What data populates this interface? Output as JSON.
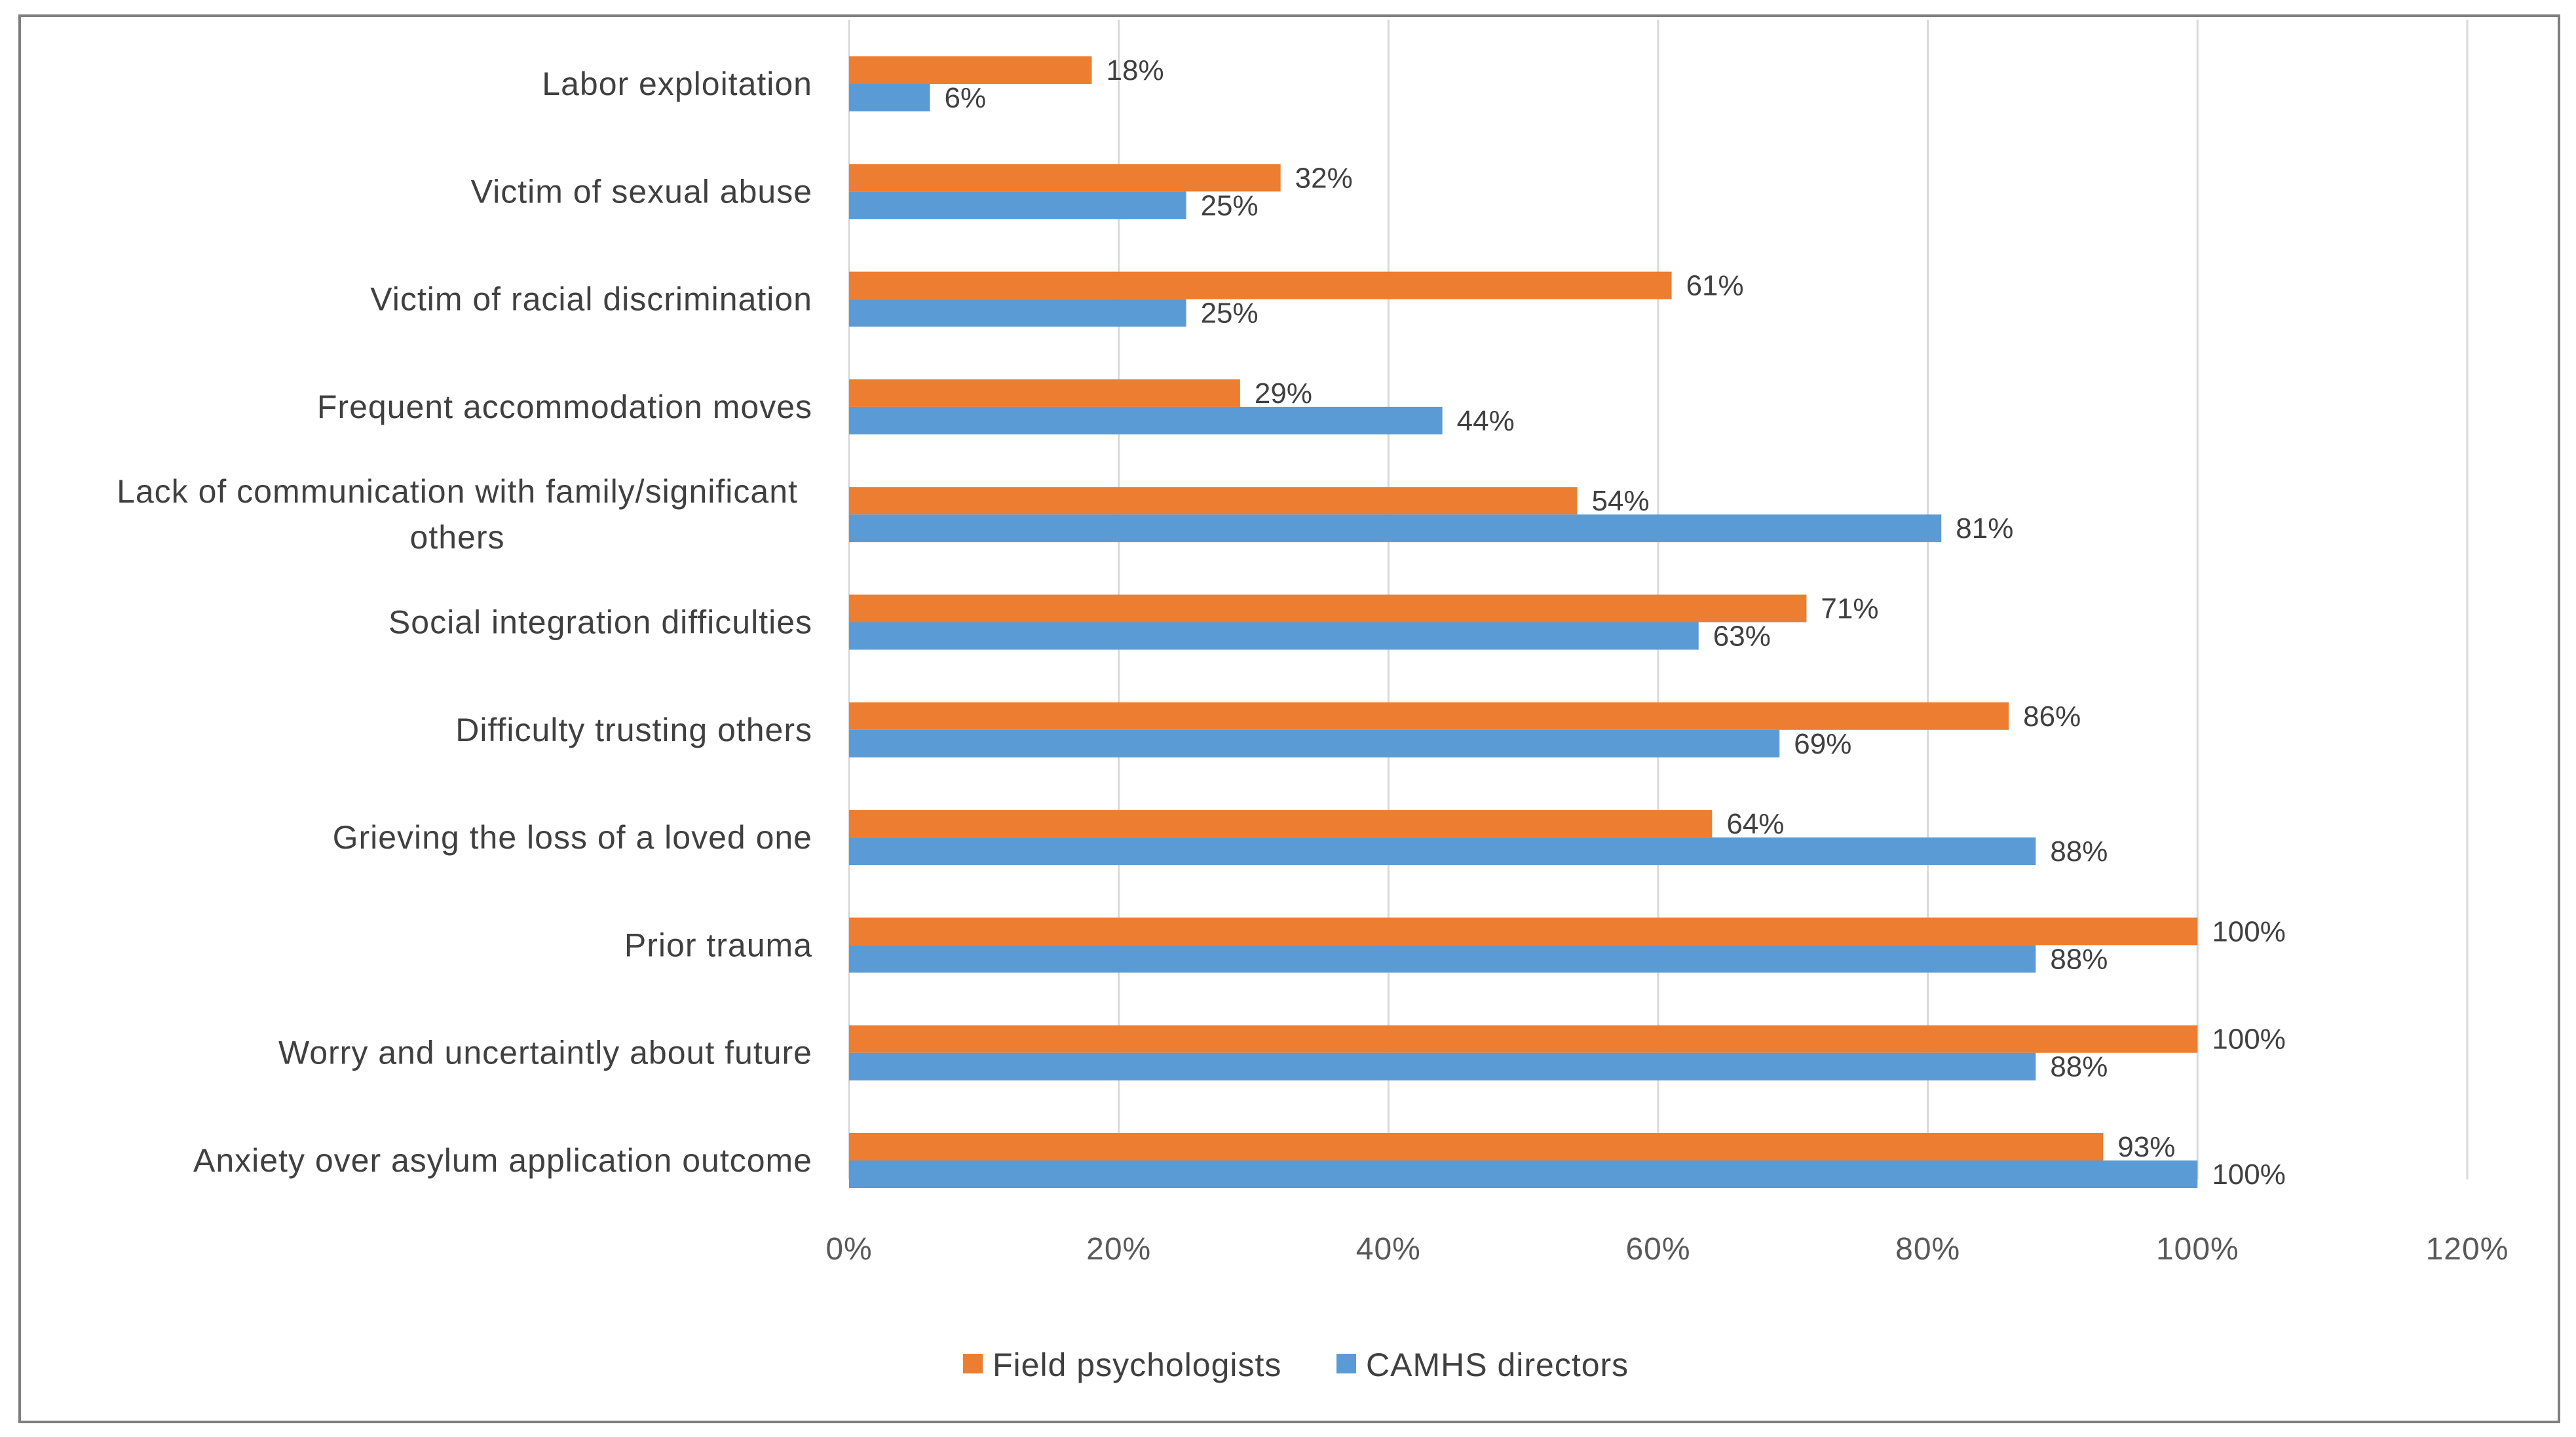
{
  "chart_data": {
    "type": "bar",
    "orientation": "horizontal",
    "title": "",
    "xlabel": "",
    "ylabel": "",
    "xlim": [
      0,
      120
    ],
    "x_ticks": [
      "0%",
      "20%",
      "40%",
      "60%",
      "80%",
      "100%",
      "120%"
    ],
    "x_tick_values": [
      0,
      20,
      40,
      60,
      80,
      100,
      120
    ],
    "grid": true,
    "legend_position": "bottom",
    "categories": [
      [
        "Labor exploitation"
      ],
      [
        "Victim of sexual abuse"
      ],
      [
        "Victim of racial discrimination"
      ],
      [
        "Frequent accommodation moves"
      ],
      [
        "Lack of communication with family/significant",
        "others"
      ],
      [
        "Social integration difficulties"
      ],
      [
        "Difficulty trusting others"
      ],
      [
        "Grieving the loss of a loved one"
      ],
      [
        "Prior trauma"
      ],
      [
        "Worry and uncertaintly about future"
      ],
      [
        "Anxiety over asylum application outcome"
      ]
    ],
    "series": [
      {
        "name": "Field psychologists",
        "color": "#ED7D31",
        "values": [
          18,
          32,
          61,
          29,
          54,
          71,
          86,
          64,
          100,
          100,
          93
        ],
        "labels": [
          "18%",
          "32%",
          "61%",
          "29%",
          "54%",
          "71%",
          "86%",
          "64%",
          "100%",
          "100%",
          "93%"
        ]
      },
      {
        "name": "CAMHS directors",
        "color": "#5B9BD5",
        "values": [
          6,
          25,
          25,
          44,
          81,
          63,
          69,
          88,
          88,
          88,
          100
        ],
        "labels": [
          "6%",
          "25%",
          "25%",
          "44%",
          "81%",
          "63%",
          "69%",
          "88%",
          "88%",
          "88%",
          "100%"
        ]
      }
    ]
  }
}
